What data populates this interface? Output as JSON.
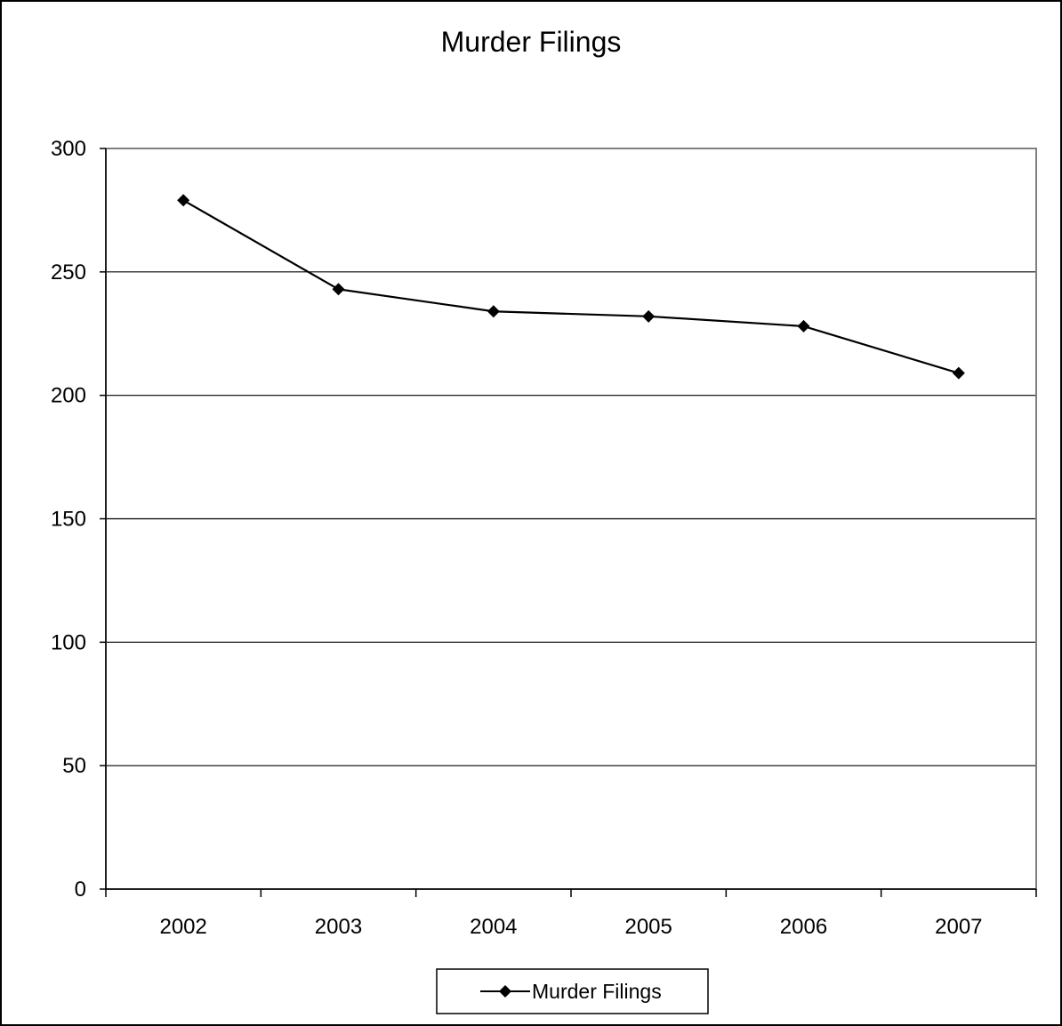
{
  "chart_data": {
    "type": "line",
    "title": "Murder Filings",
    "xlabel": "",
    "ylabel": "",
    "categories": [
      "2002",
      "2003",
      "2004",
      "2005",
      "2006",
      "2007"
    ],
    "series": [
      {
        "name": "Murder Filings",
        "values": [
          279,
          243,
          234,
          232,
          228,
          209
        ]
      }
    ],
    "ylim": [
      0,
      300
    ],
    "yticks": [
      "0",
      "50",
      "100",
      "150",
      "200",
      "250",
      "300"
    ],
    "grid": true,
    "legend_position": "bottom",
    "colors": {
      "line": "#000000",
      "grid": "#000000",
      "plot_border": "#808080"
    }
  }
}
